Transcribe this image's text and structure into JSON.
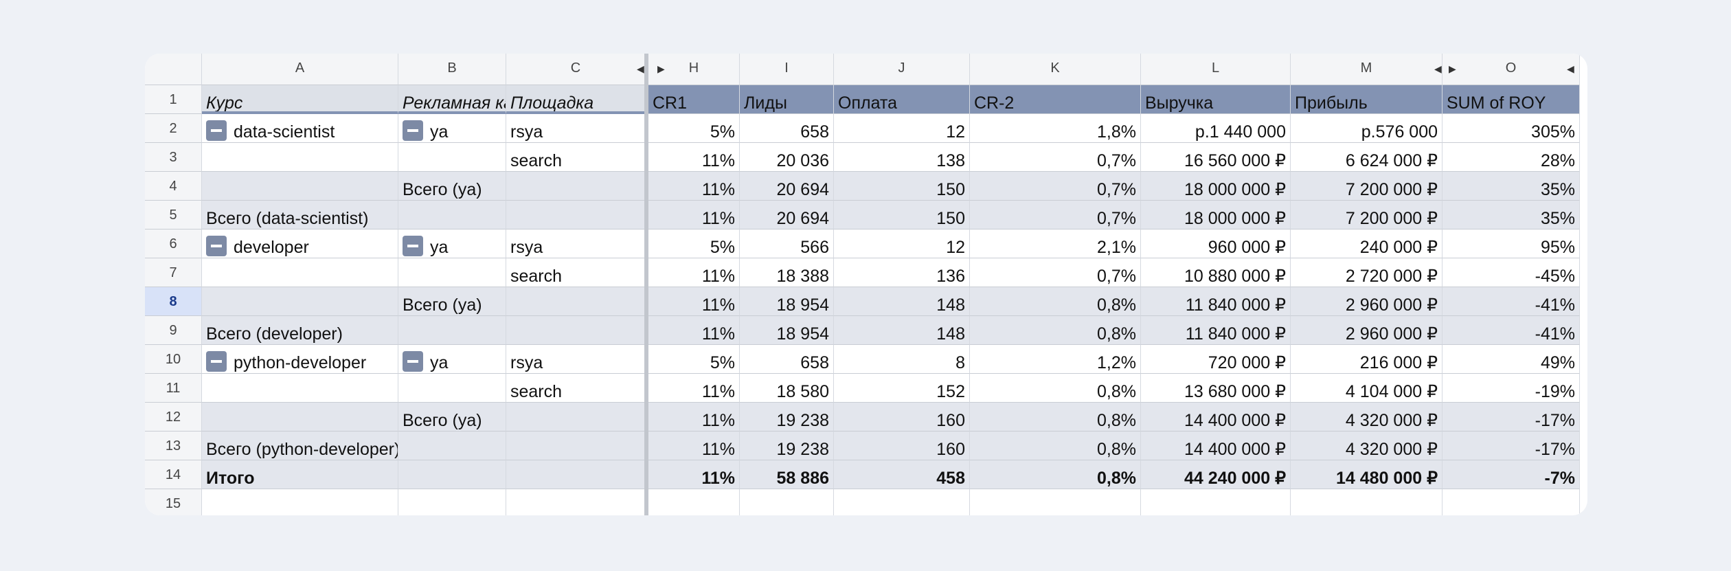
{
  "columns": {
    "A": "A",
    "B": "B",
    "C": "C",
    "H": "H",
    "I": "I",
    "J": "J",
    "K": "K",
    "L": "L",
    "M": "M",
    "O": "O"
  },
  "header": {
    "kurs": "Курс",
    "campaign": "Рекламная ка",
    "platform": "Площадка",
    "cr1": "CR1",
    "leads": "Лиды",
    "payment": "Оплата",
    "cr2": "CR-2",
    "revenue": "Выручка",
    "profit": "Прибыль",
    "roy": "SUM of ROY"
  },
  "rows": [
    {
      "n": "2",
      "a": "data-scientist",
      "b": "ya",
      "c": "rsya",
      "cr1": "5%",
      "leads": "658",
      "pay": "12",
      "cr2": "1,8%",
      "rev": "р.1 440 000",
      "prof": "р.576 000",
      "roy": "305%"
    },
    {
      "n": "3",
      "a": "",
      "b": "",
      "c": "search",
      "cr1": "11%",
      "leads": "20 036",
      "pay": "138",
      "cr2": "0,7%",
      "rev": "16 560 000 ₽",
      "prof": "6 624 000 ₽",
      "roy": "28%"
    },
    {
      "n": "4",
      "a": "",
      "b": "Всего (ya)",
      "c": "",
      "cr1": "11%",
      "leads": "20 694",
      "pay": "150",
      "cr2": "0,7%",
      "rev": "18 000 000 ₽",
      "prof": "7 200 000 ₽",
      "roy": "35%"
    },
    {
      "n": "5",
      "a": "Всего (data-scientist)",
      "b": "",
      "c": "",
      "cr1": "11%",
      "leads": "20 694",
      "pay": "150",
      "cr2": "0,7%",
      "rev": "18 000 000 ₽",
      "prof": "7 200 000 ₽",
      "roy": "35%"
    },
    {
      "n": "6",
      "a": "developer",
      "b": "ya",
      "c": "rsya",
      "cr1": "5%",
      "leads": "566",
      "pay": "12",
      "cr2": "2,1%",
      "rev": "960 000 ₽",
      "prof": "240 000 ₽",
      "roy": "95%"
    },
    {
      "n": "7",
      "a": "",
      "b": "",
      "c": "search",
      "cr1": "11%",
      "leads": "18 388",
      "pay": "136",
      "cr2": "0,7%",
      "rev": "10 880 000 ₽",
      "prof": "2 720 000 ₽",
      "roy": "-45%"
    },
    {
      "n": "8",
      "a": "",
      "b": "Всего (ya)",
      "c": "",
      "cr1": "11%",
      "leads": "18 954",
      "pay": "148",
      "cr2": "0,8%",
      "rev": "11 840 000 ₽",
      "prof": "2 960 000 ₽",
      "roy": "-41%"
    },
    {
      "n": "9",
      "a": "Всего (developer)",
      "b": "",
      "c": "",
      "cr1": "11%",
      "leads": "18 954",
      "pay": "148",
      "cr2": "0,8%",
      "rev": "11 840 000 ₽",
      "prof": "2 960 000 ₽",
      "roy": "-41%"
    },
    {
      "n": "10",
      "a": "python-developer",
      "b": "ya",
      "c": "rsya",
      "cr1": "5%",
      "leads": "658",
      "pay": "8",
      "cr2": "1,2%",
      "rev": "720 000 ₽",
      "prof": "216 000 ₽",
      "roy": "49%"
    },
    {
      "n": "11",
      "a": "",
      "b": "",
      "c": "search",
      "cr1": "11%",
      "leads": "18 580",
      "pay": "152",
      "cr2": "0,8%",
      "rev": "13 680 000 ₽",
      "prof": "4 104 000 ₽",
      "roy": "-19%"
    },
    {
      "n": "12",
      "a": "",
      "b": "Всего (ya)",
      "c": "",
      "cr1": "11%",
      "leads": "19 238",
      "pay": "160",
      "cr2": "0,8%",
      "rev": "14 400 000 ₽",
      "prof": "4 320 000 ₽",
      "roy": "-17%"
    },
    {
      "n": "13",
      "a": "Всего (python-developer)",
      "b": "",
      "c": "",
      "cr1": "11%",
      "leads": "19 238",
      "pay": "160",
      "cr2": "0,8%",
      "rev": "14 400 000 ₽",
      "prof": "4 320 000 ₽",
      "roy": "-17%"
    },
    {
      "n": "14",
      "a": "Итого",
      "b": "",
      "c": "",
      "cr1": "11%",
      "leads": "58 886",
      "pay": "458",
      "cr2": "0,8%",
      "rev": "44 240 000 ₽",
      "prof": "14 480 000 ₽",
      "roy": "-7%"
    }
  ],
  "row_numbers": {
    "header": "1",
    "last": "15"
  },
  "selected_row": "8",
  "icons": {
    "collapse": "minus-box-icon",
    "arrow_left": "triangle-left-icon",
    "arrow_right": "triangle-right-icon"
  }
}
